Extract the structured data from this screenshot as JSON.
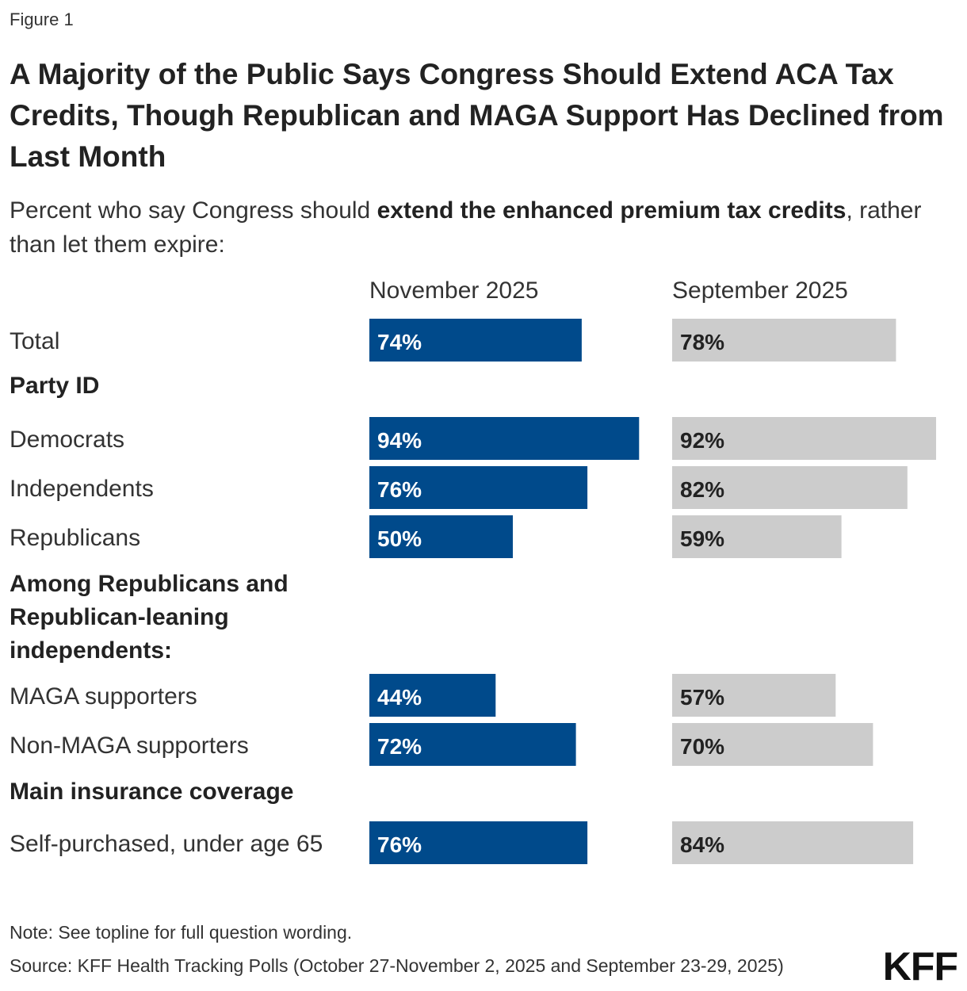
{
  "figure_label": "Figure 1",
  "title": "A Majority of the Public Says Congress Should Extend ACA Tax Credits, Though Republican and MAGA Support Has Declined from Last Month",
  "subtitle": {
    "before": "Percent who say Congress should ",
    "bold": "extend the enhanced premium tax credits",
    "after": ", rather than let them expire:"
  },
  "note": "Note: See topline for full question wording.",
  "source": "Source: KFF Health Tracking Polls (October 27-November 2, 2025 and September 23-29, 2025)",
  "logo_text": "KFF",
  "colors": {
    "november": "#004a8b",
    "september": "#cccccc",
    "november_text": "#ffffff",
    "september_text": "#222222"
  },
  "chart_data": {
    "type": "bar",
    "orientation": "horizontal",
    "series": [
      {
        "name": "November 2025",
        "values": [
          74,
          null,
          94,
          76,
          50,
          null,
          44,
          72,
          null,
          76
        ]
      },
      {
        "name": "September 2025",
        "values": [
          78,
          null,
          92,
          82,
          59,
          null,
          57,
          70,
          null,
          84
        ]
      }
    ],
    "categories": [
      {
        "label": "Total",
        "header": false
      },
      {
        "label": "Party ID",
        "header": true
      },
      {
        "label": "Democrats",
        "header": false
      },
      {
        "label": "Independents",
        "header": false
      },
      {
        "label": "Republicans",
        "header": false
      },
      {
        "label": "Among Republicans and Republican-leaning independents:",
        "header": true,
        "lines": [
          "Among Republicans and",
          "Republican-leaning",
          "independents:"
        ]
      },
      {
        "label": "MAGA supporters",
        "header": false
      },
      {
        "label": "Non-MAGA supporters",
        "header": false
      },
      {
        "label": "Main insurance coverage",
        "header": true
      },
      {
        "label": "Self-purchased, under age 65",
        "header": false
      }
    ],
    "value_suffix": "%",
    "xlim": [
      0,
      100
    ],
    "legend": "column headers above bars"
  }
}
